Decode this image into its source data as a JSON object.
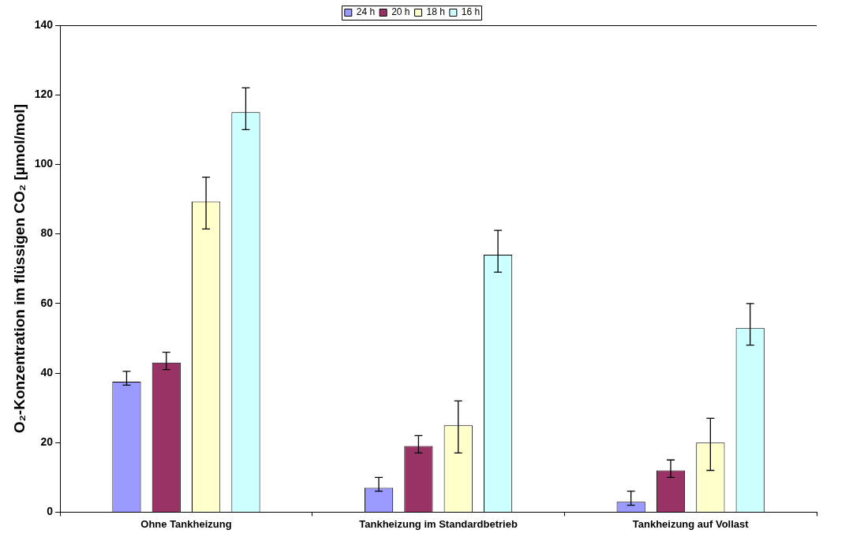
{
  "chart_data": {
    "type": "bar",
    "ylabel": "O₂-Konzentration im flüssigen CO₂ [µmol/mol]",
    "categories": [
      "Ohne Tankheizung",
      "Tankheizung im Standardbetrieb",
      "Tankheizung auf Vollast"
    ],
    "series": [
      {
        "name": "24 h",
        "color": "#9999ff",
        "values": [
          37.5,
          7,
          3
        ],
        "errors": [
          [
            36.5,
            40.5
          ],
          [
            6,
            10
          ],
          [
            2,
            6
          ]
        ]
      },
      {
        "name": "20 h",
        "color": "#993366",
        "values": [
          43,
          19,
          12
        ],
        "errors": [
          [
            41,
            46
          ],
          [
            17,
            22
          ],
          [
            10,
            15
          ]
        ]
      },
      {
        "name": "18 h",
        "color": "#ffffcc",
        "values": [
          89.3,
          25,
          20
        ],
        "errors": [
          [
            81.4,
            96.3
          ],
          [
            17,
            32
          ],
          [
            12,
            27
          ]
        ]
      },
      {
        "name": "16 h",
        "color": "#ccffff",
        "values": [
          115,
          74,
          53
        ],
        "errors": [
          [
            110,
            122
          ],
          [
            69,
            81
          ],
          [
            48,
            60
          ]
        ]
      }
    ],
    "ylim": [
      0,
      140
    ],
    "yticks": [
      0,
      20,
      40,
      60,
      80,
      100,
      120,
      140
    ],
    "grid": false,
    "legend": "top"
  }
}
